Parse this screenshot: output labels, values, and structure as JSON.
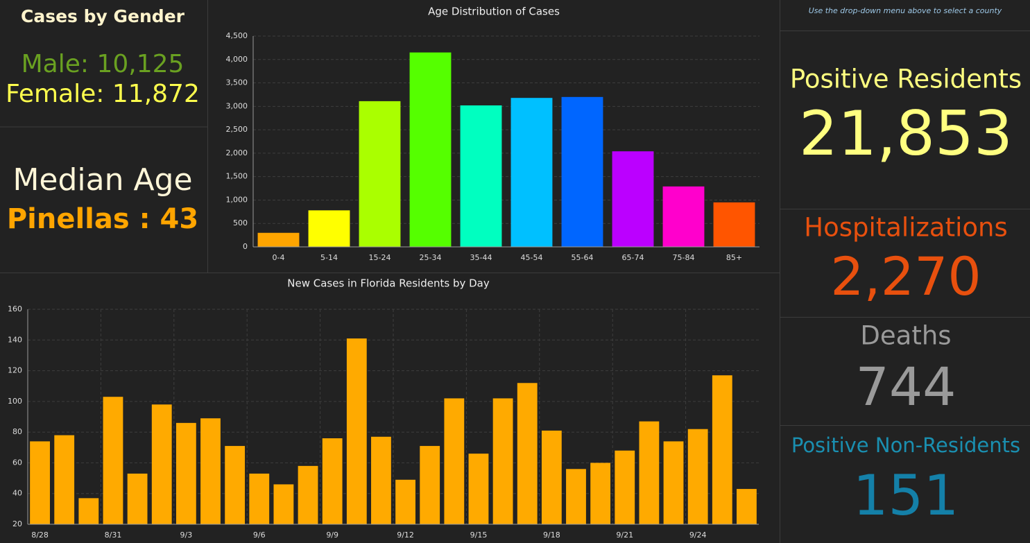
{
  "gender": {
    "title": "Cases by Gender",
    "male": "Male: 10,125",
    "female": "Female: 11,872"
  },
  "median": {
    "title": "Median Age",
    "value": "Pinellas : 43"
  },
  "instruction": "Use the drop-down menu above to select a county",
  "stats": [
    {
      "label": "Positive Residents",
      "value": "21,853"
    },
    {
      "label": "Hospitalizations",
      "value": "2,270"
    },
    {
      "label": "Deaths",
      "value": "744"
    },
    {
      "label": "Positive Non-Residents",
      "value": "151"
    }
  ],
  "chart_data": [
    {
      "type": "bar",
      "title": "Age Distribution of Cases",
      "categories": [
        "0-4",
        "5-14",
        "15-24",
        "25-34",
        "35-44",
        "45-54",
        "55-64",
        "65-74",
        "75-84",
        "85+"
      ],
      "values": [
        300,
        780,
        3110,
        4150,
        3020,
        3180,
        3200,
        2040,
        1290,
        950
      ],
      "colors": [
        "#ffa500",
        "#ffff00",
        "#aaff00",
        "#55ff00",
        "#00ffc0",
        "#00c0ff",
        "#0066ff",
        "#bb00ff",
        "#ff00cc",
        "#ff5500"
      ],
      "ylim": [
        0,
        4500
      ],
      "yticks": [
        0,
        500,
        {
          "value": 1000,
          "label": "1,000"
        },
        {
          "value": 1500,
          "label": "1,500"
        },
        {
          "value": 2000,
          "label": "2,000"
        },
        {
          "value": 2500,
          "label": "2,500"
        },
        {
          "value": 3000,
          "label": "3,000"
        },
        {
          "value": 3500,
          "label": "3,500"
        },
        {
          "value": 4000,
          "label": "4,000"
        },
        {
          "value": 4500,
          "label": "4,500"
        }
      ],
      "grid": true
    },
    {
      "type": "bar",
      "title": "New Cases in Florida Residents by Day",
      "categories": [
        "8/28",
        null,
        null,
        "8/31",
        null,
        null,
        "9/3",
        null,
        null,
        "9/6",
        null,
        null,
        "9/9",
        null,
        null,
        "9/12",
        null,
        null,
        "9/15",
        null,
        null,
        "9/18",
        null,
        null,
        "9/21",
        null,
        null,
        "9/24",
        null,
        null
      ],
      "values": [
        74,
        78,
        37,
        103,
        53,
        98,
        86,
        89,
        71,
        53,
        46,
        58,
        76,
        141,
        77,
        49,
        71,
        102,
        66,
        102,
        112,
        81,
        56,
        60,
        68,
        87,
        74,
        82,
        117,
        43
      ],
      "color": "#ffaa00",
      "ylim": [
        20,
        160
      ],
      "yticks": [
        20,
        40,
        60,
        80,
        100,
        120,
        140,
        160
      ],
      "grid": true
    }
  ]
}
